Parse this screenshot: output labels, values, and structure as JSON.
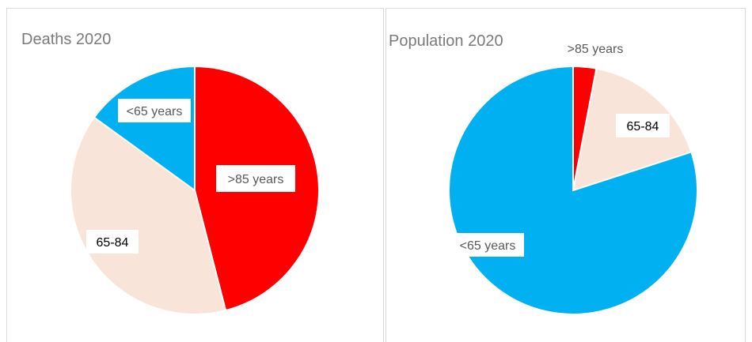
{
  "chart_data": [
    {
      "type": "pie",
      "title": "Deaths 2020",
      "slices": [
        {
          "label": ">85 years",
          "value": 46,
          "color": "#ff0000",
          "label_color": "#595959"
        },
        {
          "label": "65-84",
          "value": 39,
          "color": "#f8e4d8",
          "label_color": "#000000"
        },
        {
          "label": "<65 years",
          "value": 15,
          "color": "#00b0f0",
          "label_color": "#595959"
        }
      ]
    },
    {
      "type": "pie",
      "title": "Population 2020",
      "slices": [
        {
          "label": ">85 years",
          "value": 3,
          "color": "#ff0000",
          "label_color": "#595959"
        },
        {
          "label": "65-84",
          "value": 17,
          "color": "#f8e4d8",
          "label_color": "#000000"
        },
        {
          "label": "<65 years",
          "value": 80,
          "color": "#00b0f0",
          "label_color": "#595959"
        }
      ]
    }
  ]
}
